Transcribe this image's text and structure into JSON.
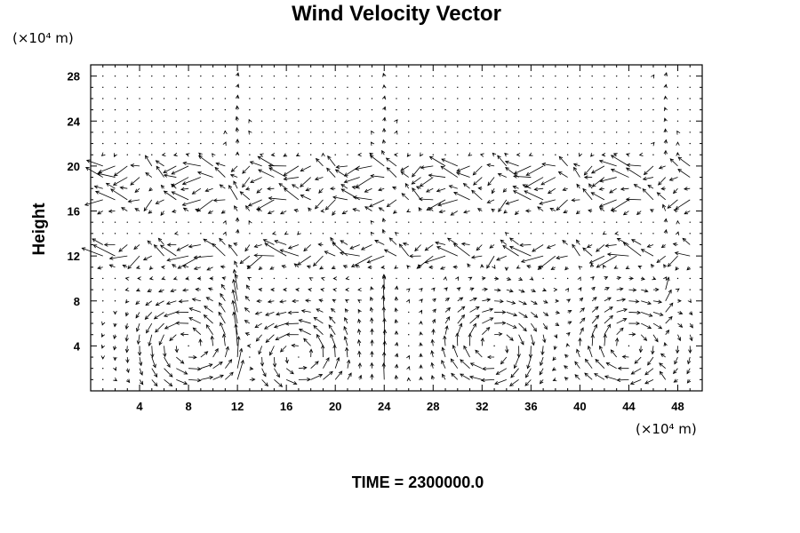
{
  "chart_data": {
    "type": "quiver",
    "title": "Wind Velocity Vector",
    "ylabel": "Height",
    "y_unit": "(×10⁴ m)",
    "x_unit": "(×10⁴ m)",
    "xlim": [
      0,
      50
    ],
    "ylim": [
      0,
      29
    ],
    "x_ticks": [
      4,
      8,
      12,
      16,
      20,
      24,
      28,
      32,
      36,
      40,
      44,
      48
    ],
    "y_ticks": [
      4,
      8,
      12,
      16,
      20,
      24,
      28
    ],
    "grid": false,
    "time_label": "TIME = 2300000.0",
    "vector_grid": {
      "dx": 2,
      "dy": 1,
      "features": [
        {
          "kind": "jet",
          "height": 19.5,
          "direction": "westward",
          "strength": 6
        },
        {
          "kind": "jet",
          "height": 17.0,
          "direction": "westward",
          "strength": 5
        },
        {
          "kind": "jet",
          "height": 12.2,
          "direction": "westward",
          "strength": 6
        },
        {
          "kind": "vortex",
          "center_x": 8,
          "center_y": 4,
          "sense": "counterclockwise"
        },
        {
          "kind": "vortex",
          "center_x": 17,
          "center_y": 3,
          "sense": "counterclockwise"
        },
        {
          "kind": "vortex",
          "center_x": 33,
          "center_y": 4,
          "sense": "clockwise"
        },
        {
          "kind": "vortex",
          "center_x": 44,
          "center_y": 4,
          "sense": "clockwise"
        },
        {
          "kind": "updraft",
          "x": 12,
          "strength": 5
        },
        {
          "kind": "updraft",
          "x": 24,
          "strength": 4
        },
        {
          "kind": "updraft",
          "x": 47,
          "strength": 4
        }
      ]
    }
  }
}
